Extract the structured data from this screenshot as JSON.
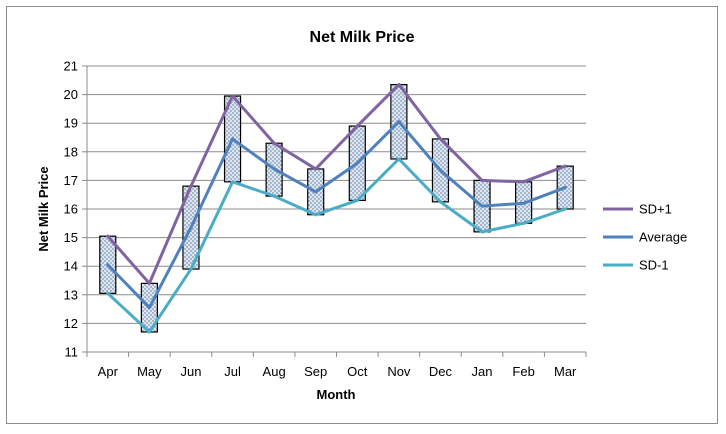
{
  "chart_data": {
    "type": "line",
    "title": "Net Milk Price",
    "xlabel": "Month",
    "ylabel": "Net Milk Price",
    "ylim": [
      11,
      21
    ],
    "yticks": [
      11,
      12,
      13,
      14,
      15,
      16,
      17,
      18,
      19,
      20,
      21
    ],
    "grid": "horizontal",
    "legend": "right",
    "categories": [
      "Apr",
      "May",
      "Jun",
      "Jul",
      "Aug",
      "Sep",
      "Oct",
      "Nov",
      "Dec",
      "Jan",
      "Feb",
      "Mar"
    ],
    "series": [
      {
        "name": "SD+1",
        "color": "#8064a2",
        "values": [
          15.05,
          13.4,
          16.8,
          19.95,
          18.3,
          17.4,
          18.9,
          20.35,
          18.45,
          17.0,
          16.95,
          17.5
        ]
      },
      {
        "name": "Average",
        "color": "#4f81bd",
        "values": [
          14.05,
          12.55,
          15.35,
          18.45,
          17.4,
          16.6,
          17.6,
          19.05,
          17.35,
          16.1,
          16.2,
          16.75
        ]
      },
      {
        "name": "SD-1",
        "color": "#4bacc6",
        "values": [
          13.05,
          11.7,
          13.9,
          16.95,
          16.45,
          15.8,
          16.3,
          17.75,
          16.25,
          15.2,
          15.5,
          16.0
        ]
      }
    ],
    "range_boxes": {
      "from_series": "SD-1",
      "to_series": "SD+1",
      "fill": "#dce6f2",
      "pattern": "dotted",
      "stroke": "#000000"
    }
  }
}
